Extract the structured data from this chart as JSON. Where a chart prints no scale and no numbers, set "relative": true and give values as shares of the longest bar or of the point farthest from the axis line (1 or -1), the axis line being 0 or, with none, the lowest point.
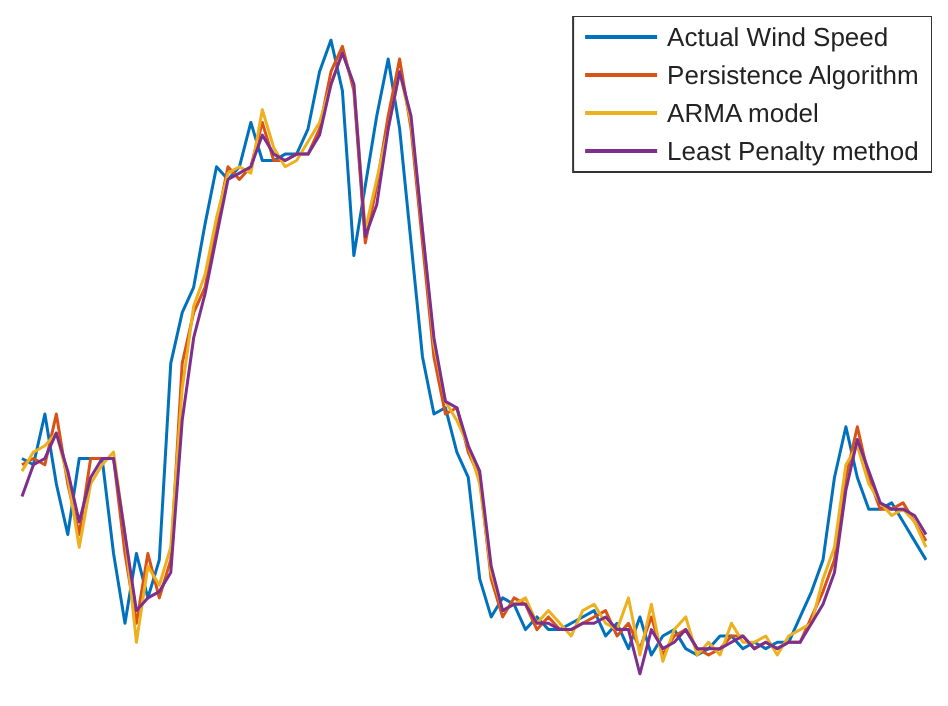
{
  "chart_data": {
    "type": "line",
    "relative": true,
    "legend": "top right",
    "grid": false,
    "marker": "none",
    "line_style": "solid",
    "categories": [
      null,
      null,
      null,
      null,
      null,
      null,
      null,
      null,
      null,
      null,
      null,
      null,
      null,
      null,
      null,
      null,
      null,
      null,
      null,
      null,
      null,
      null,
      null,
      null,
      null,
      null,
      null,
      null,
      null,
      null,
      null,
      null,
      null,
      null,
      null,
      null,
      null,
      null,
      null,
      null,
      null,
      null,
      null,
      null,
      null,
      null,
      null,
      null,
      null,
      null,
      null,
      null,
      null,
      null,
      null,
      null,
      null,
      null,
      null,
      null,
      null,
      null,
      null,
      null,
      null,
      null,
      null,
      null,
      null,
      null,
      null,
      null,
      null,
      null,
      null,
      null,
      null,
      null,
      null,
      null
    ],
    "series": [
      {
        "name": "Actual Wind Speed",
        "color": "#0072bd",
        "values": [
          0.34,
          0.33,
          0.41,
          0.3,
          0.22,
          0.34,
          0.34,
          0.34,
          0.19,
          0.08,
          0.19,
          0.12,
          0.18,
          0.49,
          0.57,
          0.61,
          0.71,
          0.8,
          0.78,
          0.8,
          0.87,
          0.81,
          0.81,
          0.82,
          0.82,
          0.86,
          0.95,
          1.0,
          0.92,
          0.66,
          0.77,
          0.88,
          0.97,
          0.86,
          0.68,
          0.5,
          0.41,
          0.42,
          0.35,
          0.31,
          0.15,
          0.09,
          0.12,
          0.11,
          0.07,
          0.09,
          0.07,
          0.07,
          0.08,
          0.09,
          0.1,
          0.06,
          0.08,
          0.04,
          0.09,
          0.03,
          0.06,
          0.07,
          0.04,
          0.03,
          0.04,
          0.06,
          0.06,
          0.04,
          0.05,
          0.04,
          0.05,
          0.05,
          0.09,
          0.13,
          0.18,
          0.31,
          0.39,
          0.31,
          0.26,
          0.26,
          0.27,
          0.24,
          0.21,
          0.18
        ]
      },
      {
        "name": "Persistence Algorithm",
        "color": "#d95319",
        "values": [
          0.33,
          0.34,
          0.33,
          0.41,
          0.3,
          0.22,
          0.34,
          0.34,
          0.34,
          0.19,
          0.08,
          0.19,
          0.12,
          0.18,
          0.49,
          0.57,
          0.61,
          0.71,
          0.8,
          0.78,
          0.8,
          0.87,
          0.81,
          0.81,
          0.82,
          0.82,
          0.86,
          0.95,
          0.99,
          0.92,
          0.68,
          0.77,
          0.88,
          0.97,
          0.86,
          0.68,
          0.5,
          0.41,
          0.42,
          0.35,
          0.31,
          0.15,
          0.09,
          0.12,
          0.11,
          0.07,
          0.09,
          0.07,
          0.07,
          0.08,
          0.09,
          0.1,
          0.06,
          0.08,
          0.04,
          0.09,
          0.03,
          0.06,
          0.07,
          0.04,
          0.03,
          0.04,
          0.06,
          0.06,
          0.04,
          0.05,
          0.04,
          0.05,
          0.05,
          0.09,
          0.13,
          0.18,
          0.31,
          0.39,
          0.31,
          0.26,
          0.26,
          0.27,
          0.24,
          0.21
        ]
      },
      {
        "name": "ARMA model",
        "color": "#edb120",
        "values": [
          0.32,
          0.35,
          0.36,
          0.38,
          0.31,
          0.2,
          0.3,
          0.33,
          0.35,
          0.22,
          0.05,
          0.17,
          0.14,
          0.2,
          0.45,
          0.58,
          0.63,
          0.72,
          0.79,
          0.8,
          0.79,
          0.89,
          0.83,
          0.8,
          0.81,
          0.84,
          0.87,
          0.93,
          0.98,
          0.93,
          0.7,
          0.78,
          0.86,
          0.95,
          0.87,
          0.7,
          0.52,
          0.43,
          0.4,
          0.36,
          0.3,
          0.16,
          0.1,
          0.11,
          0.12,
          0.08,
          0.1,
          0.08,
          0.06,
          0.1,
          0.11,
          0.08,
          0.07,
          0.12,
          0.03,
          0.11,
          0.02,
          0.07,
          0.09,
          0.03,
          0.05,
          0.03,
          0.08,
          0.05,
          0.05,
          0.06,
          0.03,
          0.06,
          0.07,
          0.08,
          0.15,
          0.2,
          0.33,
          0.36,
          0.3,
          0.27,
          0.25,
          0.26,
          0.24,
          0.2
        ]
      },
      {
        "name": "Least Penalty method",
        "color": "#7e2f8e",
        "values": [
          0.28,
          0.33,
          0.34,
          0.38,
          0.32,
          0.24,
          0.31,
          0.34,
          0.34,
          0.22,
          0.1,
          0.12,
          0.13,
          0.16,
          0.4,
          0.53,
          0.6,
          0.69,
          0.78,
          0.79,
          0.8,
          0.85,
          0.82,
          0.81,
          0.82,
          0.82,
          0.85,
          0.93,
          0.98,
          0.93,
          0.69,
          0.74,
          0.86,
          0.95,
          0.88,
          0.7,
          0.53,
          0.43,
          0.42,
          0.36,
          0.32,
          0.17,
          0.1,
          0.11,
          0.11,
          0.08,
          0.08,
          0.07,
          0.07,
          0.08,
          0.08,
          0.09,
          0.07,
          0.07,
          0.0,
          0.07,
          0.04,
          0.05,
          0.07,
          0.04,
          0.04,
          0.04,
          0.05,
          0.06,
          0.04,
          0.05,
          0.04,
          0.05,
          0.05,
          0.08,
          0.11,
          0.16,
          0.29,
          0.37,
          0.32,
          0.27,
          0.26,
          0.26,
          0.25,
          0.22
        ]
      }
    ]
  }
}
